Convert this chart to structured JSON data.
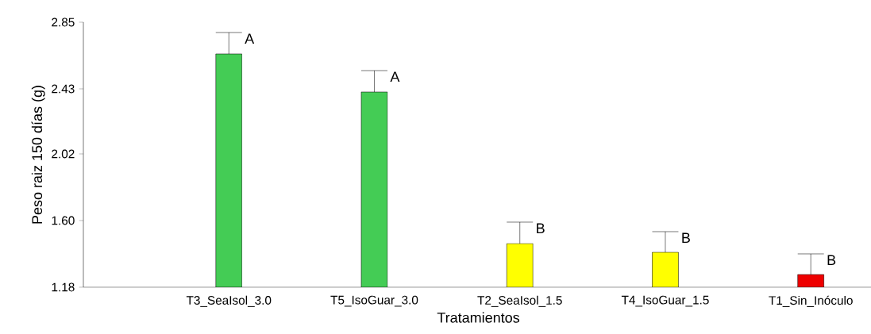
{
  "chart_data": {
    "type": "bar",
    "xlabel": "Tratamientos",
    "ylabel": "Peso raiz 150 días (g)",
    "categories": [
      "T3_SeaIsol_3.0",
      "T5_IsoGuar_3.0",
      "T2_SeaIsol_1.5",
      "T4_IsoGuar_1.5",
      "T1_Sin_Inóculo"
    ],
    "values": [
      2.65,
      2.41,
      1.455,
      1.4,
      1.26
    ],
    "colors": [
      "#44cc55",
      "#44cc55",
      "#ffff00",
      "#ffff00",
      "#ee0000"
    ],
    "errors": [
      [
        2.65,
        2.785
      ],
      [
        2.41,
        2.545
      ],
      [
        1.455,
        1.59
      ],
      [
        1.4,
        1.53
      ],
      [
        1.26,
        1.39
      ]
    ],
    "ylim": [
      1.18,
      2.85
    ],
    "yticks": [
      1.18,
      {
        "value": 1.6,
        "label": "1.60"
      },
      2.02,
      2.43,
      2.85
    ],
    "grid": false,
    "annotations": [
      {
        "text": "A",
        "x": "T3_SeaIsol_3.0",
        "y": 2.785
      },
      {
        "text": "A",
        "x": "T5_IsoGuar_3.0",
        "y": 2.545
      },
      {
        "text": "B",
        "x": "T2_SeaIsol_1.5",
        "y": 1.59
      },
      {
        "text": "B",
        "x": "T4_IsoGuar_1.5",
        "y": 1.53
      },
      {
        "text": "B",
        "x": "T1_Sin_Inóculo",
        "y": 1.39
      }
    ]
  }
}
